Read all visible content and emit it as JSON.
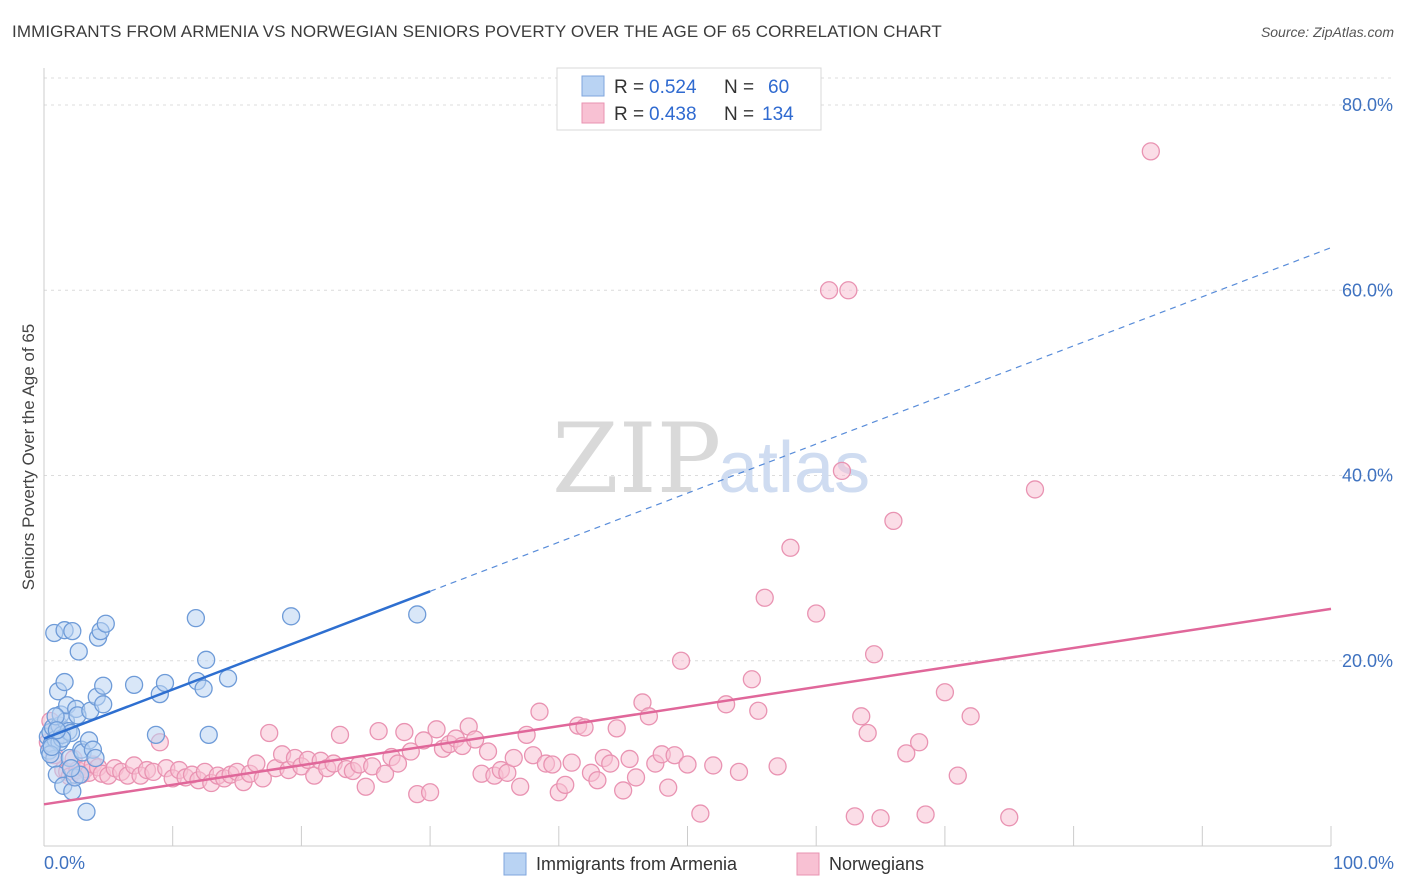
{
  "title": "IMMIGRANTS FROM ARMENIA VS NORWEGIAN SENIORS POVERTY OVER THE AGE OF 65 CORRELATION CHART",
  "source": "Source: ZipAtlas.com",
  "watermark": {
    "zip": "ZIP",
    "atlas": "atlas"
  },
  "legend": {
    "r_label": "R =",
    "n_label": "N =",
    "rows": [
      {
        "r": "0.524",
        "n": "60",
        "fill": "#b9d3f3",
        "stroke": "#7fa6dd"
      },
      {
        "r": "0.438",
        "n": "134",
        "fill": "#f8c1d3",
        "stroke": "#e993b2"
      }
    ]
  },
  "chart_data": {
    "type": "scatter",
    "title": "IMMIGRANTS FROM ARMENIA VS NORWEGIAN SENIORS POVERTY OVER THE AGE OF 65 CORRELATION CHART",
    "xlabel": "",
    "ylabel": "Seniors Poverty Over the Age of 65",
    "xlim": [
      0,
      100
    ],
    "ylim": [
      0,
      84
    ],
    "x_tick_labels": [
      "0.0%",
      "100.0%"
    ],
    "y_ticks": [
      20,
      40,
      60,
      80
    ],
    "y_tick_labels": [
      "20.0%",
      "40.0%",
      "60.0%",
      "80.0%"
    ],
    "grid": true,
    "legend_position": "top-center",
    "series": [
      {
        "name": "Immigrants from Armenia",
        "color": "#2e6fd0",
        "point_fill": "#b9d3f3",
        "point_stroke": "#6e9bd8",
        "trend": {
          "x0": 0,
          "y0": 11.6,
          "x1": 30,
          "y1": 27.5,
          "dashed_to_x": 100,
          "dashed_to_y": 64.6
        },
        "points": [
          [
            0.3,
            11.8
          ],
          [
            0.4,
            10.3
          ],
          [
            0.5,
            12.3
          ],
          [
            0.6,
            11.0
          ],
          [
            0.7,
            12.8
          ],
          [
            0.8,
            9.4
          ],
          [
            0.8,
            23.0
          ],
          [
            0.9,
            11.5
          ],
          [
            1.0,
            7.7
          ],
          [
            1.1,
            16.7
          ],
          [
            1.2,
            13.0
          ],
          [
            1.2,
            11.2
          ],
          [
            1.3,
            14.2
          ],
          [
            1.4,
            12.0
          ],
          [
            1.5,
            6.5
          ],
          [
            1.6,
            23.3
          ],
          [
            1.6,
            17.7
          ],
          [
            1.7,
            13.5
          ],
          [
            1.8,
            15.2
          ],
          [
            1.9,
            12.4
          ],
          [
            2.0,
            9.5
          ],
          [
            2.1,
            12.2
          ],
          [
            2.2,
            23.2
          ],
          [
            2.2,
            5.9
          ],
          [
            2.4,
            7.4
          ],
          [
            2.5,
            14.8
          ],
          [
            2.6,
            14.1
          ],
          [
            2.7,
            21.0
          ],
          [
            2.8,
            7.7
          ],
          [
            2.9,
            10.4
          ],
          [
            3.0,
            10.1
          ],
          [
            3.3,
            3.7
          ],
          [
            3.5,
            11.4
          ],
          [
            3.6,
            14.6
          ],
          [
            3.8,
            10.4
          ],
          [
            4.0,
            9.5
          ],
          [
            4.1,
            16.1
          ],
          [
            4.2,
            22.5
          ],
          [
            4.4,
            23.2
          ],
          [
            4.6,
            15.3
          ],
          [
            4.6,
            17.3
          ],
          [
            4.8,
            24.0
          ],
          [
            7.0,
            17.4
          ],
          [
            8.7,
            12.0
          ],
          [
            9.0,
            16.4
          ],
          [
            9.4,
            17.6
          ],
          [
            11.8,
            24.6
          ],
          [
            11.9,
            17.8
          ],
          [
            12.4,
            17.0
          ],
          [
            12.6,
            20.1
          ],
          [
            12.8,
            12.0
          ],
          [
            14.3,
            18.1
          ],
          [
            19.2,
            24.8
          ],
          [
            29.0,
            25.0
          ],
          [
            0.5,
            9.9
          ],
          [
            0.9,
            14.0
          ],
          [
            1.4,
            11.6
          ],
          [
            2.1,
            8.4
          ],
          [
            0.6,
            10.7
          ],
          [
            1.0,
            12.5
          ]
        ]
      },
      {
        "name": "Norwegians",
        "color": "#e0679a",
        "point_fill": "#f8c1d3",
        "point_stroke": "#e993b2",
        "trend": {
          "x0": 0,
          "y0": 4.5,
          "x1": 100,
          "y1": 25.6
        },
        "points": [
          [
            0.3,
            11.2
          ],
          [
            0.5,
            13.5
          ],
          [
            0.8,
            9.8
          ],
          [
            1.1,
            12.1
          ],
          [
            1.5,
            8.2
          ],
          [
            1.8,
            8.0
          ],
          [
            2.0,
            7.5
          ],
          [
            2.3,
            9.4
          ],
          [
            2.6,
            8.2
          ],
          [
            2.9,
            7.7
          ],
          [
            3.2,
            8.3
          ],
          [
            3.5,
            7.9
          ],
          [
            3.8,
            8.8
          ],
          [
            4.2,
            8.5
          ],
          [
            4.5,
            7.8
          ],
          [
            5.0,
            7.6
          ],
          [
            5.5,
            8.4
          ],
          [
            6.0,
            8.0
          ],
          [
            6.5,
            7.6
          ],
          [
            7.0,
            8.7
          ],
          [
            7.5,
            7.6
          ],
          [
            8.0,
            8.2
          ],
          [
            8.5,
            8.0
          ],
          [
            9.0,
            11.2
          ],
          [
            9.5,
            8.4
          ],
          [
            10.0,
            7.3
          ],
          [
            10.5,
            8.2
          ],
          [
            11.0,
            7.4
          ],
          [
            11.5,
            7.7
          ],
          [
            12.0,
            7.1
          ],
          [
            12.5,
            8.0
          ],
          [
            13.0,
            6.8
          ],
          [
            13.5,
            7.6
          ],
          [
            14.0,
            7.3
          ],
          [
            14.5,
            7.7
          ],
          [
            15.0,
            8.0
          ],
          [
            15.5,
            6.9
          ],
          [
            16.0,
            7.8
          ],
          [
            16.5,
            8.9
          ],
          [
            17.0,
            7.3
          ],
          [
            17.5,
            12.2
          ],
          [
            18.0,
            8.4
          ],
          [
            18.5,
            9.9
          ],
          [
            19.0,
            8.2
          ],
          [
            19.5,
            9.5
          ],
          [
            20.0,
            8.6
          ],
          [
            20.5,
            9.3
          ],
          [
            21.0,
            7.6
          ],
          [
            21.5,
            9.2
          ],
          [
            22.0,
            8.4
          ],
          [
            22.5,
            8.9
          ],
          [
            23.0,
            12.0
          ],
          [
            23.5,
            8.3
          ],
          [
            24.0,
            8.1
          ],
          [
            24.5,
            8.8
          ],
          [
            25.0,
            6.4
          ],
          [
            25.5,
            8.6
          ],
          [
            26.0,
            12.4
          ],
          [
            26.5,
            7.8
          ],
          [
            27.0,
            9.6
          ],
          [
            27.5,
            8.9
          ],
          [
            28.0,
            12.3
          ],
          [
            28.5,
            10.2
          ],
          [
            29.0,
            5.6
          ],
          [
            29.5,
            11.4
          ],
          [
            30.0,
            5.8
          ],
          [
            30.5,
            12.6
          ],
          [
            31.0,
            10.5
          ],
          [
            31.5,
            11.0
          ],
          [
            32.0,
            11.6
          ],
          [
            32.5,
            10.8
          ],
          [
            33.0,
            12.9
          ],
          [
            33.5,
            11.5
          ],
          [
            34.0,
            7.8
          ],
          [
            34.5,
            10.2
          ],
          [
            35.0,
            7.6
          ],
          [
            35.5,
            8.2
          ],
          [
            36.0,
            7.9
          ],
          [
            36.5,
            9.5
          ],
          [
            37.0,
            6.4
          ],
          [
            37.5,
            12.0
          ],
          [
            38.0,
            9.8
          ],
          [
            38.5,
            14.5
          ],
          [
            39.0,
            8.9
          ],
          [
            39.5,
            8.8
          ],
          [
            40.0,
            5.8
          ],
          [
            40.5,
            6.6
          ],
          [
            41.0,
            9.0
          ],
          [
            41.5,
            13.0
          ],
          [
            42.0,
            12.8
          ],
          [
            42.5,
            7.9
          ],
          [
            43.0,
            7.1
          ],
          [
            43.5,
            9.5
          ],
          [
            44.0,
            8.9
          ],
          [
            44.5,
            12.7
          ],
          [
            45.0,
            6.0
          ],
          [
            45.5,
            9.4
          ],
          [
            46.0,
            7.4
          ],
          [
            46.5,
            15.5
          ],
          [
            47.0,
            14.0
          ],
          [
            47.5,
            8.9
          ],
          [
            48.0,
            9.9
          ],
          [
            48.5,
            6.3
          ],
          [
            49.0,
            9.8
          ],
          [
            49.5,
            20.0
          ],
          [
            50.0,
            8.8
          ],
          [
            51.0,
            3.5
          ],
          [
            52.0,
            8.7
          ],
          [
            53.0,
            15.3
          ],
          [
            54.0,
            8.0
          ],
          [
            55.0,
            18.0
          ],
          [
            55.5,
            14.6
          ],
          [
            56.0,
            26.8
          ],
          [
            57.0,
            8.6
          ],
          [
            58.0,
            32.2
          ],
          [
            60.0,
            25.1
          ],
          [
            61.0,
            60.0
          ],
          [
            62.0,
            40.5
          ],
          [
            62.5,
            60.0
          ],
          [
            63.0,
            3.2
          ],
          [
            63.5,
            14.0
          ],
          [
            64.0,
            12.2
          ],
          [
            64.5,
            20.7
          ],
          [
            65.0,
            3.0
          ],
          [
            66.0,
            35.1
          ],
          [
            67.0,
            10.0
          ],
          [
            68.0,
            11.2
          ],
          [
            68.5,
            3.4
          ],
          [
            70.0,
            16.6
          ],
          [
            71.0,
            7.6
          ],
          [
            72.0,
            14.0
          ],
          [
            75.0,
            3.1
          ],
          [
            77.0,
            38.5
          ],
          [
            86.0,
            75.0
          ]
        ]
      }
    ]
  },
  "bottom_legend": [
    {
      "label": "Immigrants from Armenia",
      "fill": "#b9d3f3",
      "stroke": "#7fa6dd"
    },
    {
      "label": "Norwegians",
      "fill": "#f8c1d3",
      "stroke": "#e993b2"
    }
  ]
}
